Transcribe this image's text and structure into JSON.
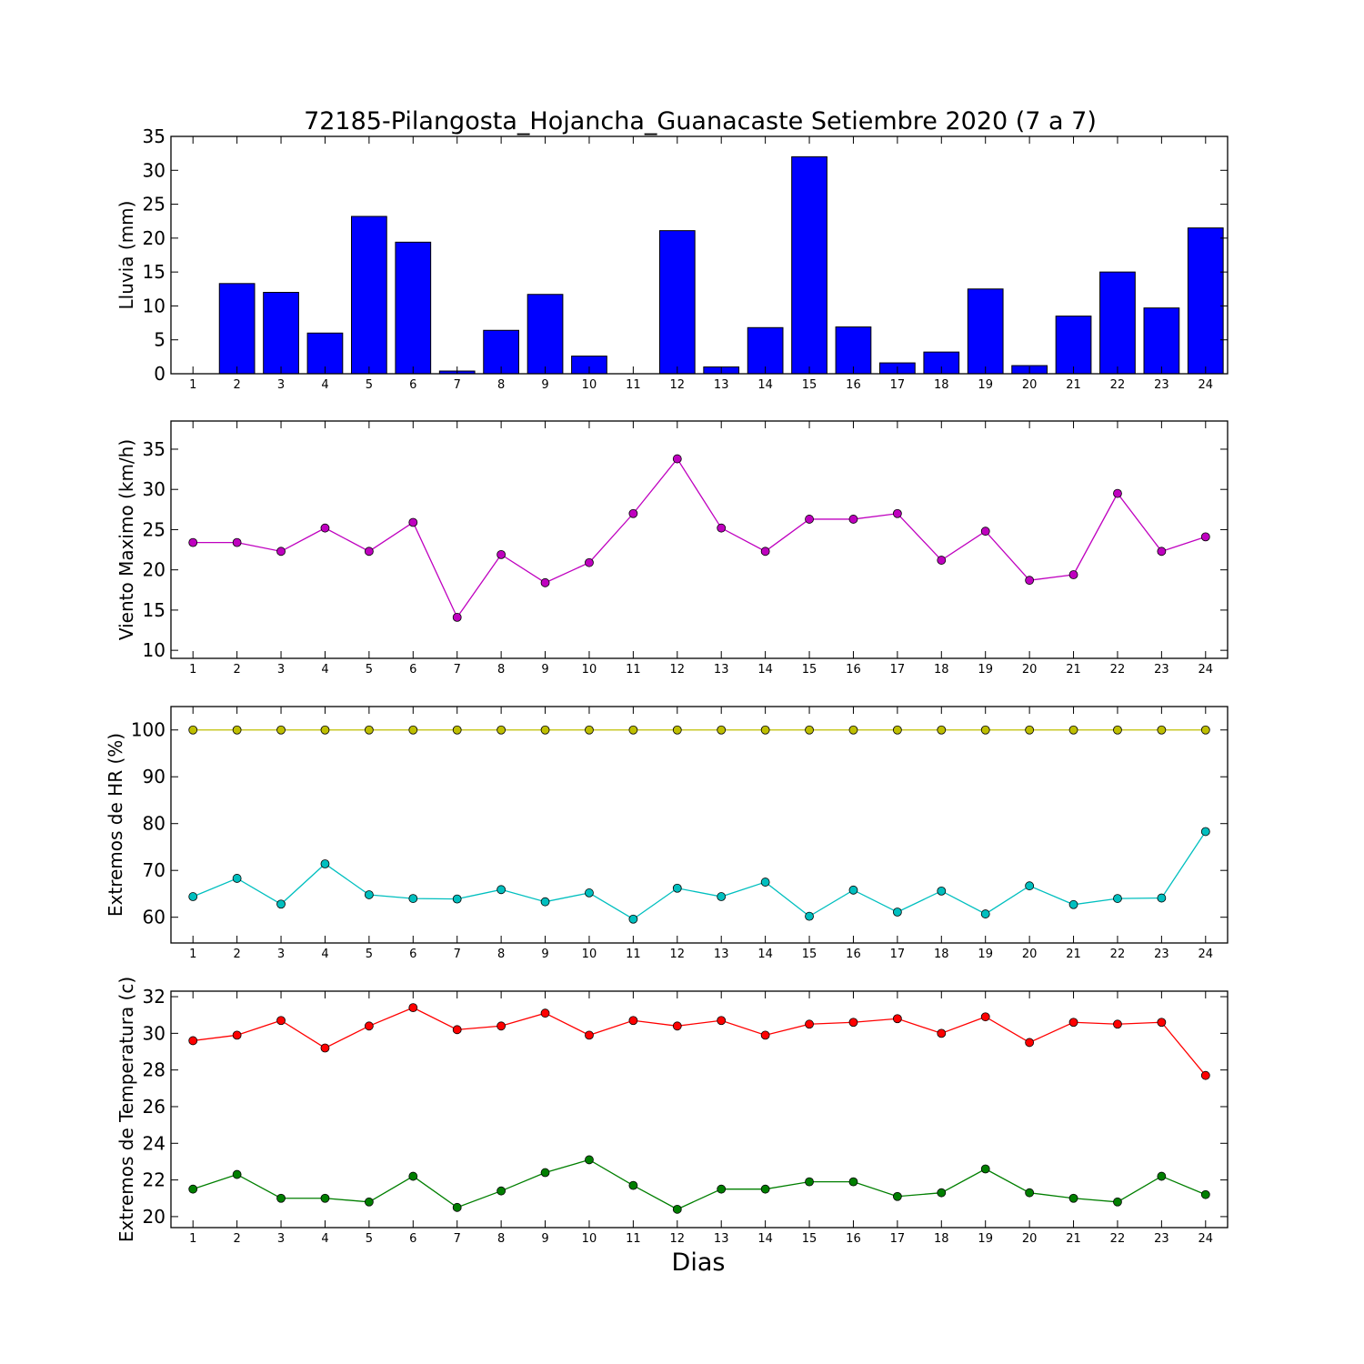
{
  "chart_data": {
    "title": "72185-Pilangosta_Hojancha_Guanacaste Setiembre 2020  (7 a 7)",
    "xlabel": "Dias",
    "days": [
      1,
      2,
      3,
      4,
      5,
      6,
      7,
      8,
      9,
      10,
      11,
      12,
      13,
      14,
      15,
      16,
      17,
      18,
      19,
      20,
      21,
      22,
      23,
      24
    ],
    "panels": [
      {
        "type": "bar",
        "ylabel": "Lluvia (mm)",
        "ylim": [
          0,
          35
        ],
        "yticks": [
          0,
          5,
          10,
          15,
          20,
          25,
          30,
          35
        ],
        "series": [
          {
            "color": "#0000ff",
            "values": [
              0,
              13.3,
              12.0,
              6.0,
              23.2,
              19.4,
              0.4,
              6.4,
              11.7,
              2.6,
              0,
              21.1,
              1.0,
              6.8,
              32.0,
              6.9,
              1.6,
              3.2,
              12.5,
              1.2,
              8.5,
              15.0,
              9.7,
              21.5
            ]
          }
        ]
      },
      {
        "type": "line",
        "ylabel": "Viento Maximo (km/h)",
        "ylim": [
          9,
          38.5
        ],
        "yticks": [
          10,
          15,
          20,
          25,
          30,
          35
        ],
        "series": [
          {
            "color": "#bf00bf",
            "values": [
              23.4,
              23.4,
              22.3,
              25.2,
              22.3,
              25.9,
              14.1,
              21.9,
              18.4,
              20.9,
              27.0,
              33.8,
              25.2,
              22.3,
              26.3,
              26.3,
              27.0,
              21.2,
              24.8,
              18.7,
              19.4,
              29.5,
              22.3,
              24.1
            ]
          }
        ]
      },
      {
        "type": "line",
        "ylabel": "Extremos de HR (%)",
        "ylim": [
          54.5,
          105
        ],
        "yticks": [
          60,
          70,
          80,
          90,
          100
        ],
        "series": [
          {
            "color": "#bfbf00",
            "values": [
              100,
              100,
              100,
              100,
              100,
              100,
              100,
              100,
              100,
              100,
              100,
              100,
              100,
              100,
              100,
              100,
              100,
              100,
              100,
              100,
              100,
              100,
              100,
              100
            ]
          },
          {
            "color": "#00bfbf",
            "values": [
              64.4,
              68.3,
              62.8,
              71.4,
              64.8,
              64.0,
              63.9,
              65.9,
              63.3,
              65.2,
              59.6,
              66.2,
              64.4,
              67.5,
              60.2,
              65.8,
              61.1,
              65.6,
              60.7,
              66.7,
              62.7,
              64.0,
              64.1,
              78.3
            ]
          }
        ]
      },
      {
        "type": "line",
        "ylabel": "Extremos de Temperatura (c)",
        "ylim": [
          19.4,
          32.3
        ],
        "yticks": [
          20,
          22,
          24,
          26,
          28,
          30,
          32
        ],
        "series": [
          {
            "color": "#ff0000",
            "values": [
              29.6,
              29.9,
              30.7,
              29.2,
              30.4,
              31.4,
              30.2,
              30.4,
              31.1,
              29.9,
              30.7,
              30.4,
              30.7,
              29.9,
              30.5,
              30.6,
              30.8,
              30.0,
              30.9,
              29.5,
              30.6,
              30.5,
              30.6,
              27.7
            ]
          },
          {
            "color": "#007f00",
            "values": [
              21.5,
              22.3,
              21.0,
              21.0,
              20.8,
              22.2,
              20.5,
              21.4,
              22.4,
              23.1,
              21.7,
              20.4,
              21.5,
              21.5,
              21.9,
              21.9,
              21.1,
              21.3,
              22.6,
              21.3,
              21.0,
              20.8,
              22.2,
              21.2
            ]
          }
        ]
      }
    ]
  }
}
